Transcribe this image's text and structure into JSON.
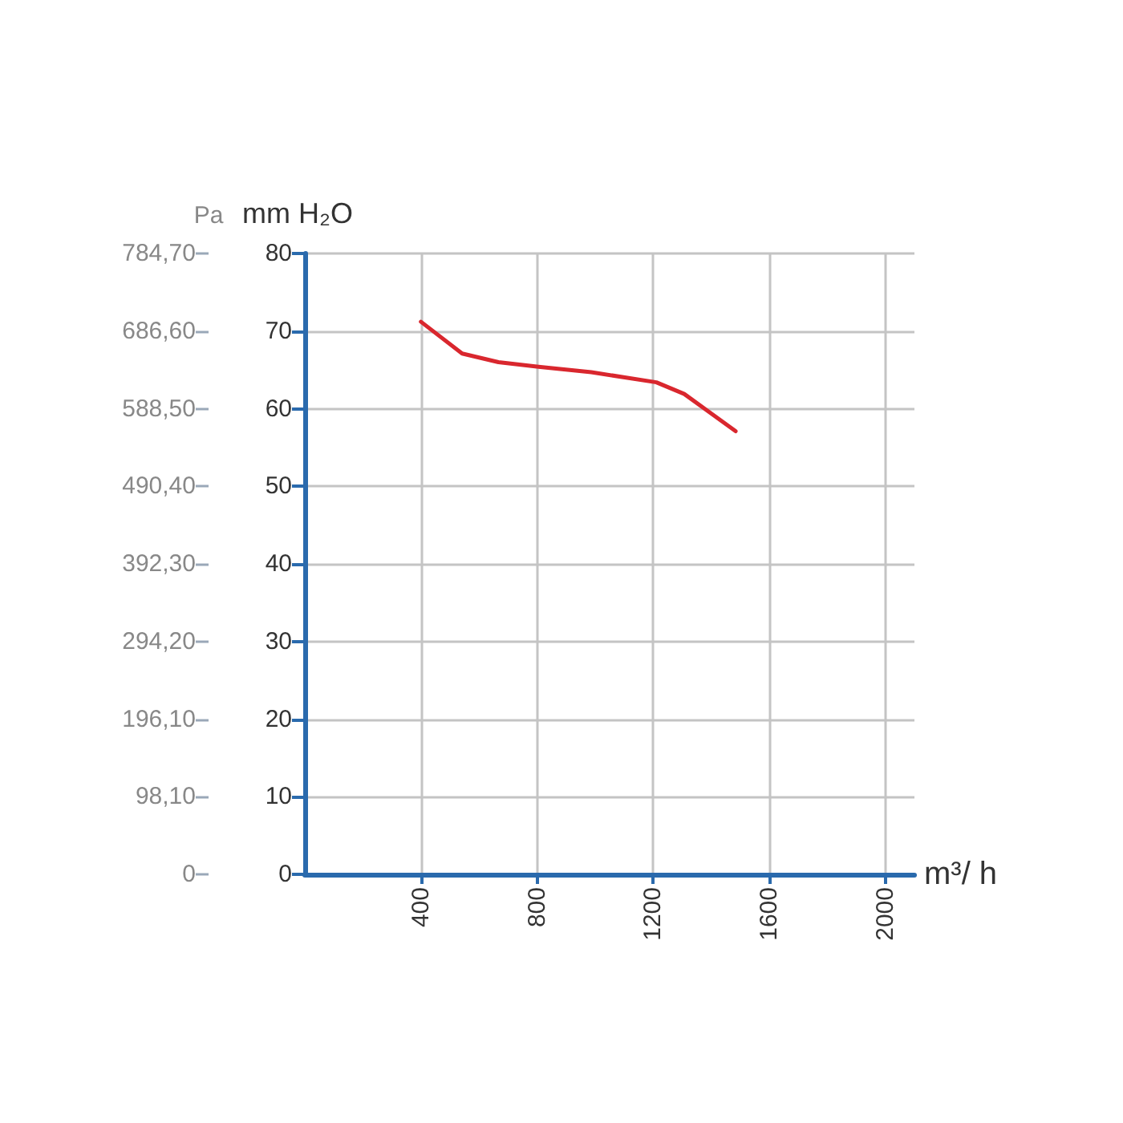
{
  "chart_data": {
    "type": "line",
    "xlabel": "m³/ h",
    "ylabel": "mm H₂O",
    "y2label": "Pa",
    "xlim": [
      0,
      2100
    ],
    "xticks": [
      400,
      800,
      1200,
      1600,
      2000
    ],
    "ylim": [
      0,
      80
    ],
    "yticks": [
      0,
      10,
      20,
      30,
      40,
      50,
      60,
      70,
      80
    ],
    "y2lim": [
      0,
      784.7
    ],
    "y2ticks": [
      {
        "value": 0,
        "label": "0"
      },
      {
        "value": 98.1,
        "label": "98,10"
      },
      {
        "value": 196.1,
        "label": "196,10"
      },
      {
        "value": 294.2,
        "label": "294,20"
      },
      {
        "value": 392.3,
        "label": "392,30"
      },
      {
        "value": 490.4,
        "label": "490,40"
      },
      {
        "value": 588.5,
        "label": "588,50"
      },
      {
        "value": 686.6,
        "label": "686,60"
      },
      {
        "value": 784.7,
        "label": "784,70"
      }
    ],
    "grid": true,
    "marker": "none",
    "series": [
      {
        "color": "#d9272e",
        "x": [
          400,
          542,
          667,
          805,
          987,
          1211,
          1307,
          1484
        ],
        "values": [
          71.2,
          67.1,
          66.0,
          65.4,
          64.7,
          63.4,
          61.9,
          57.1
        ]
      }
    ]
  }
}
